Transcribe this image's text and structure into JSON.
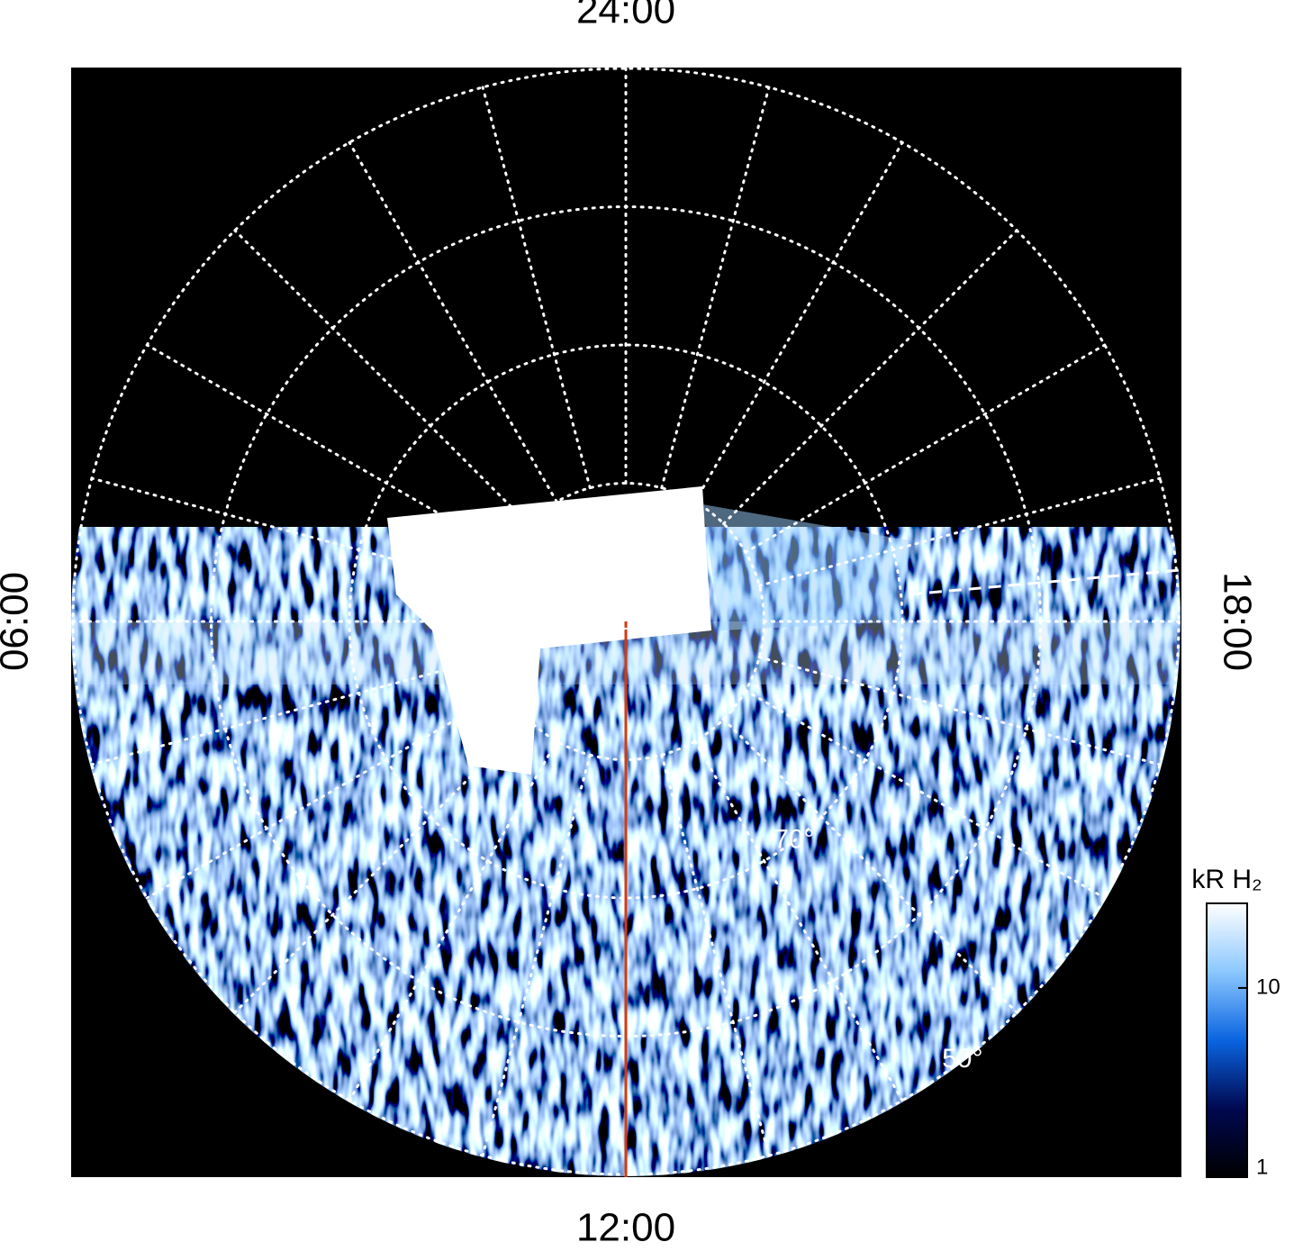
{
  "chart_data": {
    "type": "polar-image",
    "local_time_labels": [
      {
        "value": 24,
        "label": "24:00"
      },
      {
        "value": 6,
        "label": "06:00"
      },
      {
        "value": 18,
        "label": "18:00"
      },
      {
        "value": 12,
        "label": "12:00"
      }
    ],
    "lt_grid_step": 1,
    "lat_circles": [
      80,
      70,
      60,
      50
    ],
    "lat_labels": [
      {
        "value": 70,
        "label": "70°"
      },
      {
        "value": 50,
        "label": "50°"
      }
    ],
    "colorbar": {
      "label": "kR H₂",
      "log_scale": true,
      "clim": [
        1,
        28
      ],
      "ticks": [
        1,
        10
      ],
      "colors": [
        "#000000",
        "#00084f",
        "#0a64e0",
        "#8cc8ff",
        "#ffffff"
      ]
    }
  }
}
